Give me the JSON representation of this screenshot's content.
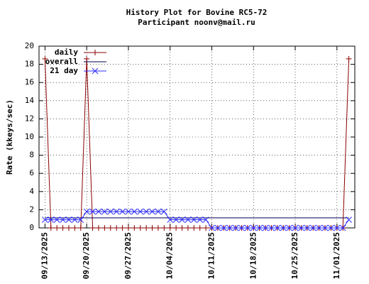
{
  "chart_data": {
    "type": "line",
    "title": "History Plot for Bovine RC5-72",
    "subtitle": "Participant noonv@mail.ru",
    "y_label": "Rate (kkeys/sec)",
    "x": [
      "09/13/2025",
      "09/14/2025",
      "09/15/2025",
      "09/16/2025",
      "09/17/2025",
      "09/18/2025",
      "09/19/2025",
      "09/20/2025",
      "09/21/2025",
      "09/22/2025",
      "09/23/2025",
      "09/24/2025",
      "09/25/2025",
      "09/26/2025",
      "09/27/2025",
      "09/28/2025",
      "09/29/2025",
      "09/30/2025",
      "10/01/2025",
      "10/02/2025",
      "10/03/2025",
      "10/04/2025",
      "10/05/2025",
      "10/06/2025",
      "10/07/2025",
      "10/08/2025",
      "10/09/2025",
      "10/10/2025",
      "10/11/2025",
      "10/12/2025",
      "10/13/2025",
      "10/14/2025",
      "10/15/2025",
      "10/16/2025",
      "10/17/2025",
      "10/18/2025",
      "10/19/2025",
      "10/20/2025",
      "10/21/2025",
      "10/22/2025",
      "10/23/2025",
      "10/24/2025",
      "10/25/2025",
      "10/26/2025",
      "10/27/2025",
      "10/28/2025",
      "10/29/2025",
      "10/30/2025",
      "10/31/2025",
      "11/01/2025",
      "11/02/2025",
      "11/03/2025"
    ],
    "series": [
      {
        "name": "daily",
        "color": "#8b0000",
        "marker": "+",
        "values": [
          18.6,
          0,
          0,
          0,
          0,
          0,
          0,
          18.6,
          0,
          0,
          0,
          0,
          0,
          0,
          0,
          0,
          0,
          0,
          0,
          0,
          0,
          0,
          0,
          0,
          0,
          0,
          0,
          0,
          0,
          0,
          0,
          0,
          0,
          0,
          0,
          0,
          0,
          0,
          0,
          0,
          0,
          0,
          0,
          0,
          0,
          0,
          0,
          0,
          0,
          0,
          0,
          18.6
        ]
      },
      {
        "name": "overall",
        "color": "#000050",
        "values": [
          1.1,
          1.1,
          1.1,
          1.1,
          1.1,
          1.1,
          1.1,
          1.1,
          1.1,
          1.1,
          1.1,
          1.1,
          1.1,
          1.1,
          1.1,
          1.1,
          1.1,
          1.1,
          1.1,
          1.1,
          1.1,
          1.1,
          1.1,
          1.1,
          1.1,
          1.1,
          1.1,
          1.1,
          1.1,
          1.1,
          1.1,
          1.1,
          1.1,
          1.1,
          1.1,
          1.1,
          1.1,
          1.1,
          1.1,
          1.1,
          1.1,
          1.1,
          1.1,
          1.1,
          1.1,
          1.1,
          1.1,
          1.1,
          1.1,
          1.1,
          1.1,
          1.1
        ]
      },
      {
        "name": "21 day",
        "color": "#3030ff",
        "marker": "x",
        "values": [
          0.9,
          0.9,
          0.9,
          0.9,
          0.9,
          0.9,
          0.9,
          1.8,
          1.8,
          1.8,
          1.8,
          1.8,
          1.8,
          1.8,
          1.8,
          1.8,
          1.8,
          1.8,
          1.8,
          1.8,
          1.8,
          0.9,
          0.9,
          0.9,
          0.9,
          0.9,
          0.9,
          0.9,
          0,
          0,
          0,
          0,
          0,
          0,
          0,
          0,
          0,
          0,
          0,
          0,
          0,
          0,
          0,
          0,
          0,
          0,
          0,
          0,
          0,
          0,
          0,
          0.9
        ]
      }
    ],
    "xlim": [
      "09/12/2025",
      "11/04/2025"
    ],
    "xticks": [
      "09/13/2025",
      "09/20/2025",
      "09/27/2025",
      "10/04/2025",
      "10/11/2025",
      "10/18/2025",
      "10/25/2025",
      "11/01/2025"
    ],
    "ylim": [
      0,
      20
    ],
    "yticks": [
      0,
      2,
      4,
      6,
      8,
      10,
      12,
      14,
      16,
      18,
      20
    ],
    "grid": true,
    "legend": "top-left"
  }
}
